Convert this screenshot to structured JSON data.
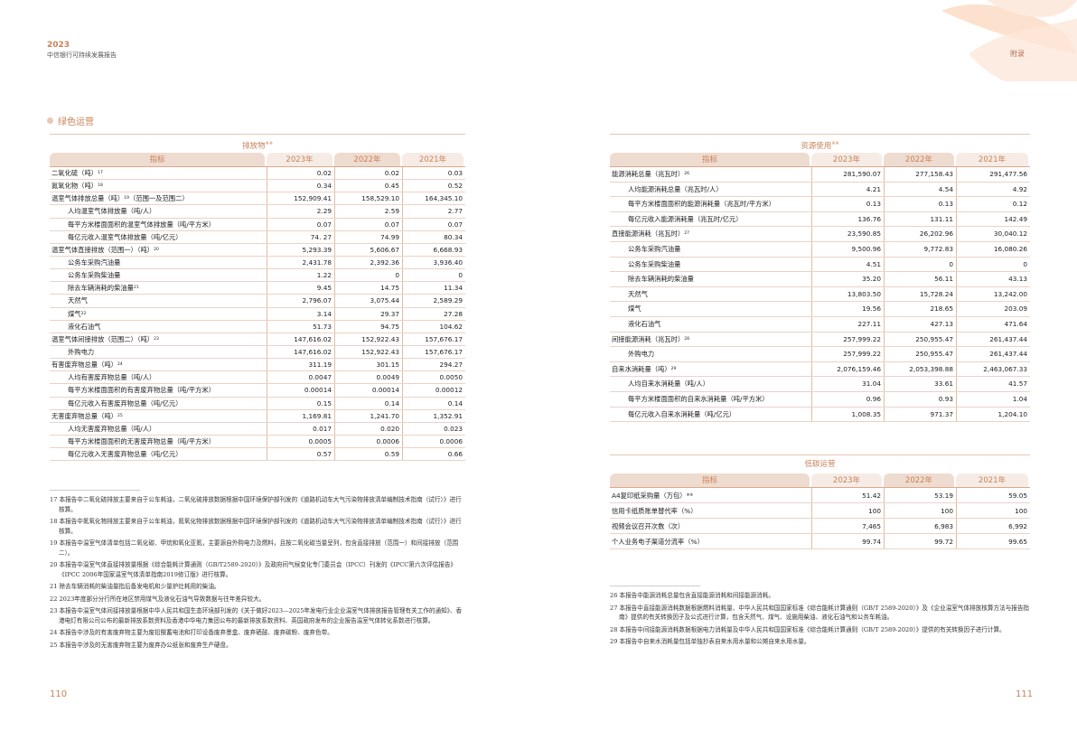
{
  "header": {
    "year": "2023",
    "report_title": "中信银行可持续发展报告",
    "right_label": "附录",
    "section": "绿色运营"
  },
  "pages": {
    "left": "110",
    "right": "111"
  },
  "colors": {
    "accent": "#c8825a",
    "rule": "#e8c8b4"
  },
  "columns": [
    "指标",
    "2023年",
    "2022年",
    "2021年"
  ],
  "emissions": {
    "title": "排放物",
    "title_sup": "※※",
    "rows": [
      {
        "label": "二氧化硫（吨）",
        "sup": "17",
        "ind": false,
        "v": [
          "0.02",
          "0.02",
          "0.03"
        ]
      },
      {
        "label": "氮氧化物（吨）",
        "sup": "18",
        "ind": false,
        "v": [
          "0.34",
          "0.45",
          "0.52"
        ]
      },
      {
        "label": "温室气体排放总量（吨）",
        "sup": "19",
        "suffix": "（范围一及范围二）",
        "ind": false,
        "v": [
          "152,909.41",
          "158,529.10",
          "164,345.10"
        ]
      },
      {
        "label": "人均温室气体排放量（吨/人）",
        "ind": true,
        "v": [
          "2.29",
          "2.59",
          "2.77"
        ]
      },
      {
        "label": "每平方米楼面面积的温室气体排放量（吨/平方米）",
        "ind": true,
        "v": [
          "0.07",
          "0.07",
          "0.07"
        ]
      },
      {
        "label": "每亿元收入温室气体排放量（吨/亿元）",
        "ind": true,
        "v": [
          "74. 27",
          "74.99",
          "80.34"
        ]
      },
      {
        "label": "温室气体直接排放（范围一）（吨）",
        "sup": "20",
        "ind": false,
        "v": [
          "5,293.39",
          "5,606.67",
          "6,668.93"
        ]
      },
      {
        "label": "公务车采购汽油量",
        "ind": true,
        "v": [
          "2,431.78",
          "2,392.36",
          "3,936.40"
        ]
      },
      {
        "label": "公务车采购柴油量",
        "ind": true,
        "v": [
          "1.22",
          "0",
          "0"
        ]
      },
      {
        "label": "除去车辆消耗的柴油量",
        "sup": "21",
        "ind": true,
        "v": [
          "9.45",
          "14.75",
          "11.34"
        ]
      },
      {
        "label": "天然气",
        "ind": true,
        "v": [
          "2,796.07",
          "3,075.44",
          "2,589.29"
        ]
      },
      {
        "label": "煤气",
        "sup": "22",
        "ind": true,
        "v": [
          "3.14",
          "29.37",
          "27.28"
        ]
      },
      {
        "label": "液化石油气",
        "ind": true,
        "v": [
          "51.73",
          "94.75",
          "104.62"
        ]
      },
      {
        "label": "温室气体间接排放（范围二）（吨）",
        "sup": "23",
        "ind": false,
        "v": [
          "147,616.02",
          "152,922.43",
          "157,676.17"
        ]
      },
      {
        "label": "外购电力",
        "ind": true,
        "v": [
          "147,616.02",
          "152,922.43",
          "157,676.17"
        ]
      },
      {
        "label": "有害废弃物总量（吨）",
        "sup": "24",
        "ind": false,
        "v": [
          "311.19",
          "301.15",
          "294.27"
        ]
      },
      {
        "label": "人均有害废弃物总量（吨/人）",
        "ind": true,
        "v": [
          "0.0047",
          "0.0049",
          "0.0050"
        ]
      },
      {
        "label": "每平方米楼面面积的有害废弃物总量（吨/平方米）",
        "ind": true,
        "v": [
          "0.00014",
          "0.00014",
          "0.00012"
        ]
      },
      {
        "label": "每亿元收入有害废弃物总量（吨/亿元）",
        "ind": true,
        "v": [
          "0.15",
          "0.14",
          "0.14"
        ]
      },
      {
        "label": "无害废弃物总量（吨）",
        "sup": "25",
        "ind": false,
        "v": [
          "1,169.81",
          "1,241.70",
          "1,352.91"
        ]
      },
      {
        "label": "人均无害废弃物总量（吨/人）",
        "ind": true,
        "v": [
          "0.017",
          "0.020",
          "0.023"
        ]
      },
      {
        "label": "每平方米楼面面积的无害废弃物总量（吨/平方米）",
        "ind": true,
        "v": [
          "0.0005",
          "0.0006",
          "0.0006"
        ]
      },
      {
        "label": "每亿元收入无害废弃物总量（吨/亿元）",
        "ind": true,
        "v": [
          "0.57",
          "0.59",
          "0.66"
        ]
      }
    ]
  },
  "resources": {
    "title": "资源使用",
    "title_sup": "※※",
    "rows": [
      {
        "label": "能源消耗总量（兆瓦时）",
        "sup": "26",
        "ind": false,
        "v": [
          "281,590.07",
          "277,158.43",
          "291,477.56"
        ]
      },
      {
        "label": "人均能源消耗总量（兆瓦时/人）",
        "ind": true,
        "v": [
          "4.21",
          "4.54",
          "4.92"
        ]
      },
      {
        "label": "每平方米楼面面积的能源消耗量（兆瓦时/平方米）",
        "ind": true,
        "v": [
          "0.13",
          "0.13",
          "0.12"
        ]
      },
      {
        "label": "每亿元收入能源消耗量（兆瓦时/亿元）",
        "ind": true,
        "v": [
          "136.76",
          "131.11",
          "142.49"
        ]
      },
      {
        "label": "直接能源消耗（兆瓦时）",
        "sup": "27",
        "ind": false,
        "v": [
          "23,590.85",
          "26,202.96",
          "30,040.12"
        ]
      },
      {
        "label": "公务车采购汽油量",
        "ind": true,
        "v": [
          "9,500.96",
          "9,772.83",
          "16,080.26"
        ]
      },
      {
        "label": "公务车采购柴油量",
        "ind": true,
        "v": [
          "4.51",
          "0",
          "0"
        ]
      },
      {
        "label": "除去车辆消耗的柴油量",
        "ind": true,
        "v": [
          "35.20",
          "56.11",
          "43.13"
        ]
      },
      {
        "label": "天然气",
        "ind": true,
        "v": [
          "13,803.50",
          "15,728.24",
          "13,242.00"
        ]
      },
      {
        "label": "煤气",
        "ind": true,
        "v": [
          "19.56",
          "218.65",
          "203.09"
        ]
      },
      {
        "label": "液化石油气",
        "ind": true,
        "v": [
          "227.11",
          "427.13",
          "471.64"
        ]
      },
      {
        "label": "间接能源消耗（兆瓦时）",
        "sup": "28",
        "ind": false,
        "v": [
          "257,999.22",
          "250,955.47",
          "261,437.44"
        ]
      },
      {
        "label": "外购电力",
        "ind": true,
        "v": [
          "257,999.22",
          "250,955.47",
          "261,437.44"
        ]
      },
      {
        "label": "自来水消耗量（吨）",
        "sup": "29",
        "ind": false,
        "v": [
          "2,076,159.46",
          "2,053,398.88",
          "2,463,067.33"
        ]
      },
      {
        "label": "人均自来水消耗量（吨/人）",
        "ind": true,
        "v": [
          "31.04",
          "33.61",
          "41.57"
        ]
      },
      {
        "label": "每平方米楼面面积的自来水消耗量（吨/平方米）",
        "ind": true,
        "v": [
          "0.96",
          "0.93",
          "1.04"
        ]
      },
      {
        "label": "每亿元收入自来水消耗量（吨/亿元）",
        "ind": true,
        "v": [
          "1,008.35",
          "971.37",
          "1,204.10"
        ]
      }
    ]
  },
  "lowcarbon": {
    "title": "低碳运营",
    "rows": [
      {
        "label": "A4复印纸采购量（万包）",
        "sup": "※※",
        "ind": false,
        "v": [
          "51.42",
          "53.19",
          "59.05"
        ]
      },
      {
        "label": "信用卡纸质账单替代率（%）",
        "ind": false,
        "v": [
          "100",
          "100",
          "100"
        ]
      },
      {
        "label": "视频会议召开次数（次）",
        "ind": false,
        "v": [
          "7,465",
          "6,983",
          "6,992"
        ]
      },
      {
        "label": "个人业务电子渠道分流率（%）",
        "ind": false,
        "v": [
          "99.74",
          "99.72",
          "99.65"
        ]
      }
    ]
  },
  "notes_left": [
    "17 本报告中二氧化硫排放主要来自于公车耗油，二氧化硫排放数据根据中国环境保护部刊发的《道路机动车大气污染物排放清单编制技术指南（试行）》进行核算。",
    "18 本报告中氮氧化物排放主要来自于公车耗油，氮氧化物排放数据根据中国环境保护部刊发的《道路机动车大气污染物排放清单编制技术指南（试行）》进行核算。",
    "19 本报告中温室气体清单包括二氧化碳、甲烷和氧化亚氮，主要源自外购电力及燃料，且按二氧化碳当量呈列，包含直接排放（范围一）和间接排放（范围二）。",
    "20 本报告中温室气体直接排放量根据《综合能耗计算通则（GB/T2589-2020）》及政府间气候变化专门委员会（IPCC）刊发的《IPCC第六次评估报告》《IPCC 2006年国家温室气体清单指南2019修订版》进行核算。",
    "21 除去车辆消耗的柴油量指后备发电机和少量炉灶耗用的柴油。",
    "22 2023年度部分分行所在地区禁用煤气及液化石油气导致数据与往年差异较大。",
    "23 本报告中温室气体间接排放量根据中华人民共和国生态环境部刊发的《关于做好2023—2025年发电行业企业温室气体排放报告管理有关工作的通知》、香港电灯有限公司公布的最新排放系数资料及香港中华电力集团公布的最新排放系数资料、英国政府发布的企业报告温室气体转化系数进行核算。",
    "24 本报告中涉及的有害废弃物主要为废铅酸蓄电池和打印设备废弃墨盒、废弃硒鼓、废弃碳粉、废弃色带。",
    "25 本报告中涉及的无害废弃物主要为废弃办公纸张和废弃生产硬盘。"
  ],
  "notes_right": [
    "26 本报告中能源消耗总量包含直接能源消耗和间接能源消耗。",
    "27 本报告中直接能源消耗数据根据燃料消耗量、中华人民共和国国家标准《综合能耗计算通则（GB/T 2589-2020）》及《企业温室气体排放核算方法与报告指南》提供的有关转换因子及公式进行计算，包含天然气、煤气、设施用柴油、液化石油气和公务车耗油。",
    "28 本报告中间接能源消耗数据根据电力消耗量及中华人民共和国国家标准《综合能耗计算通则（GB/T 2589-2020）》提供的有关转换因子进行计算。",
    "29 本报告中自来水消耗量包括单独抄表自来水用水量和公摊自来水用水量。"
  ]
}
